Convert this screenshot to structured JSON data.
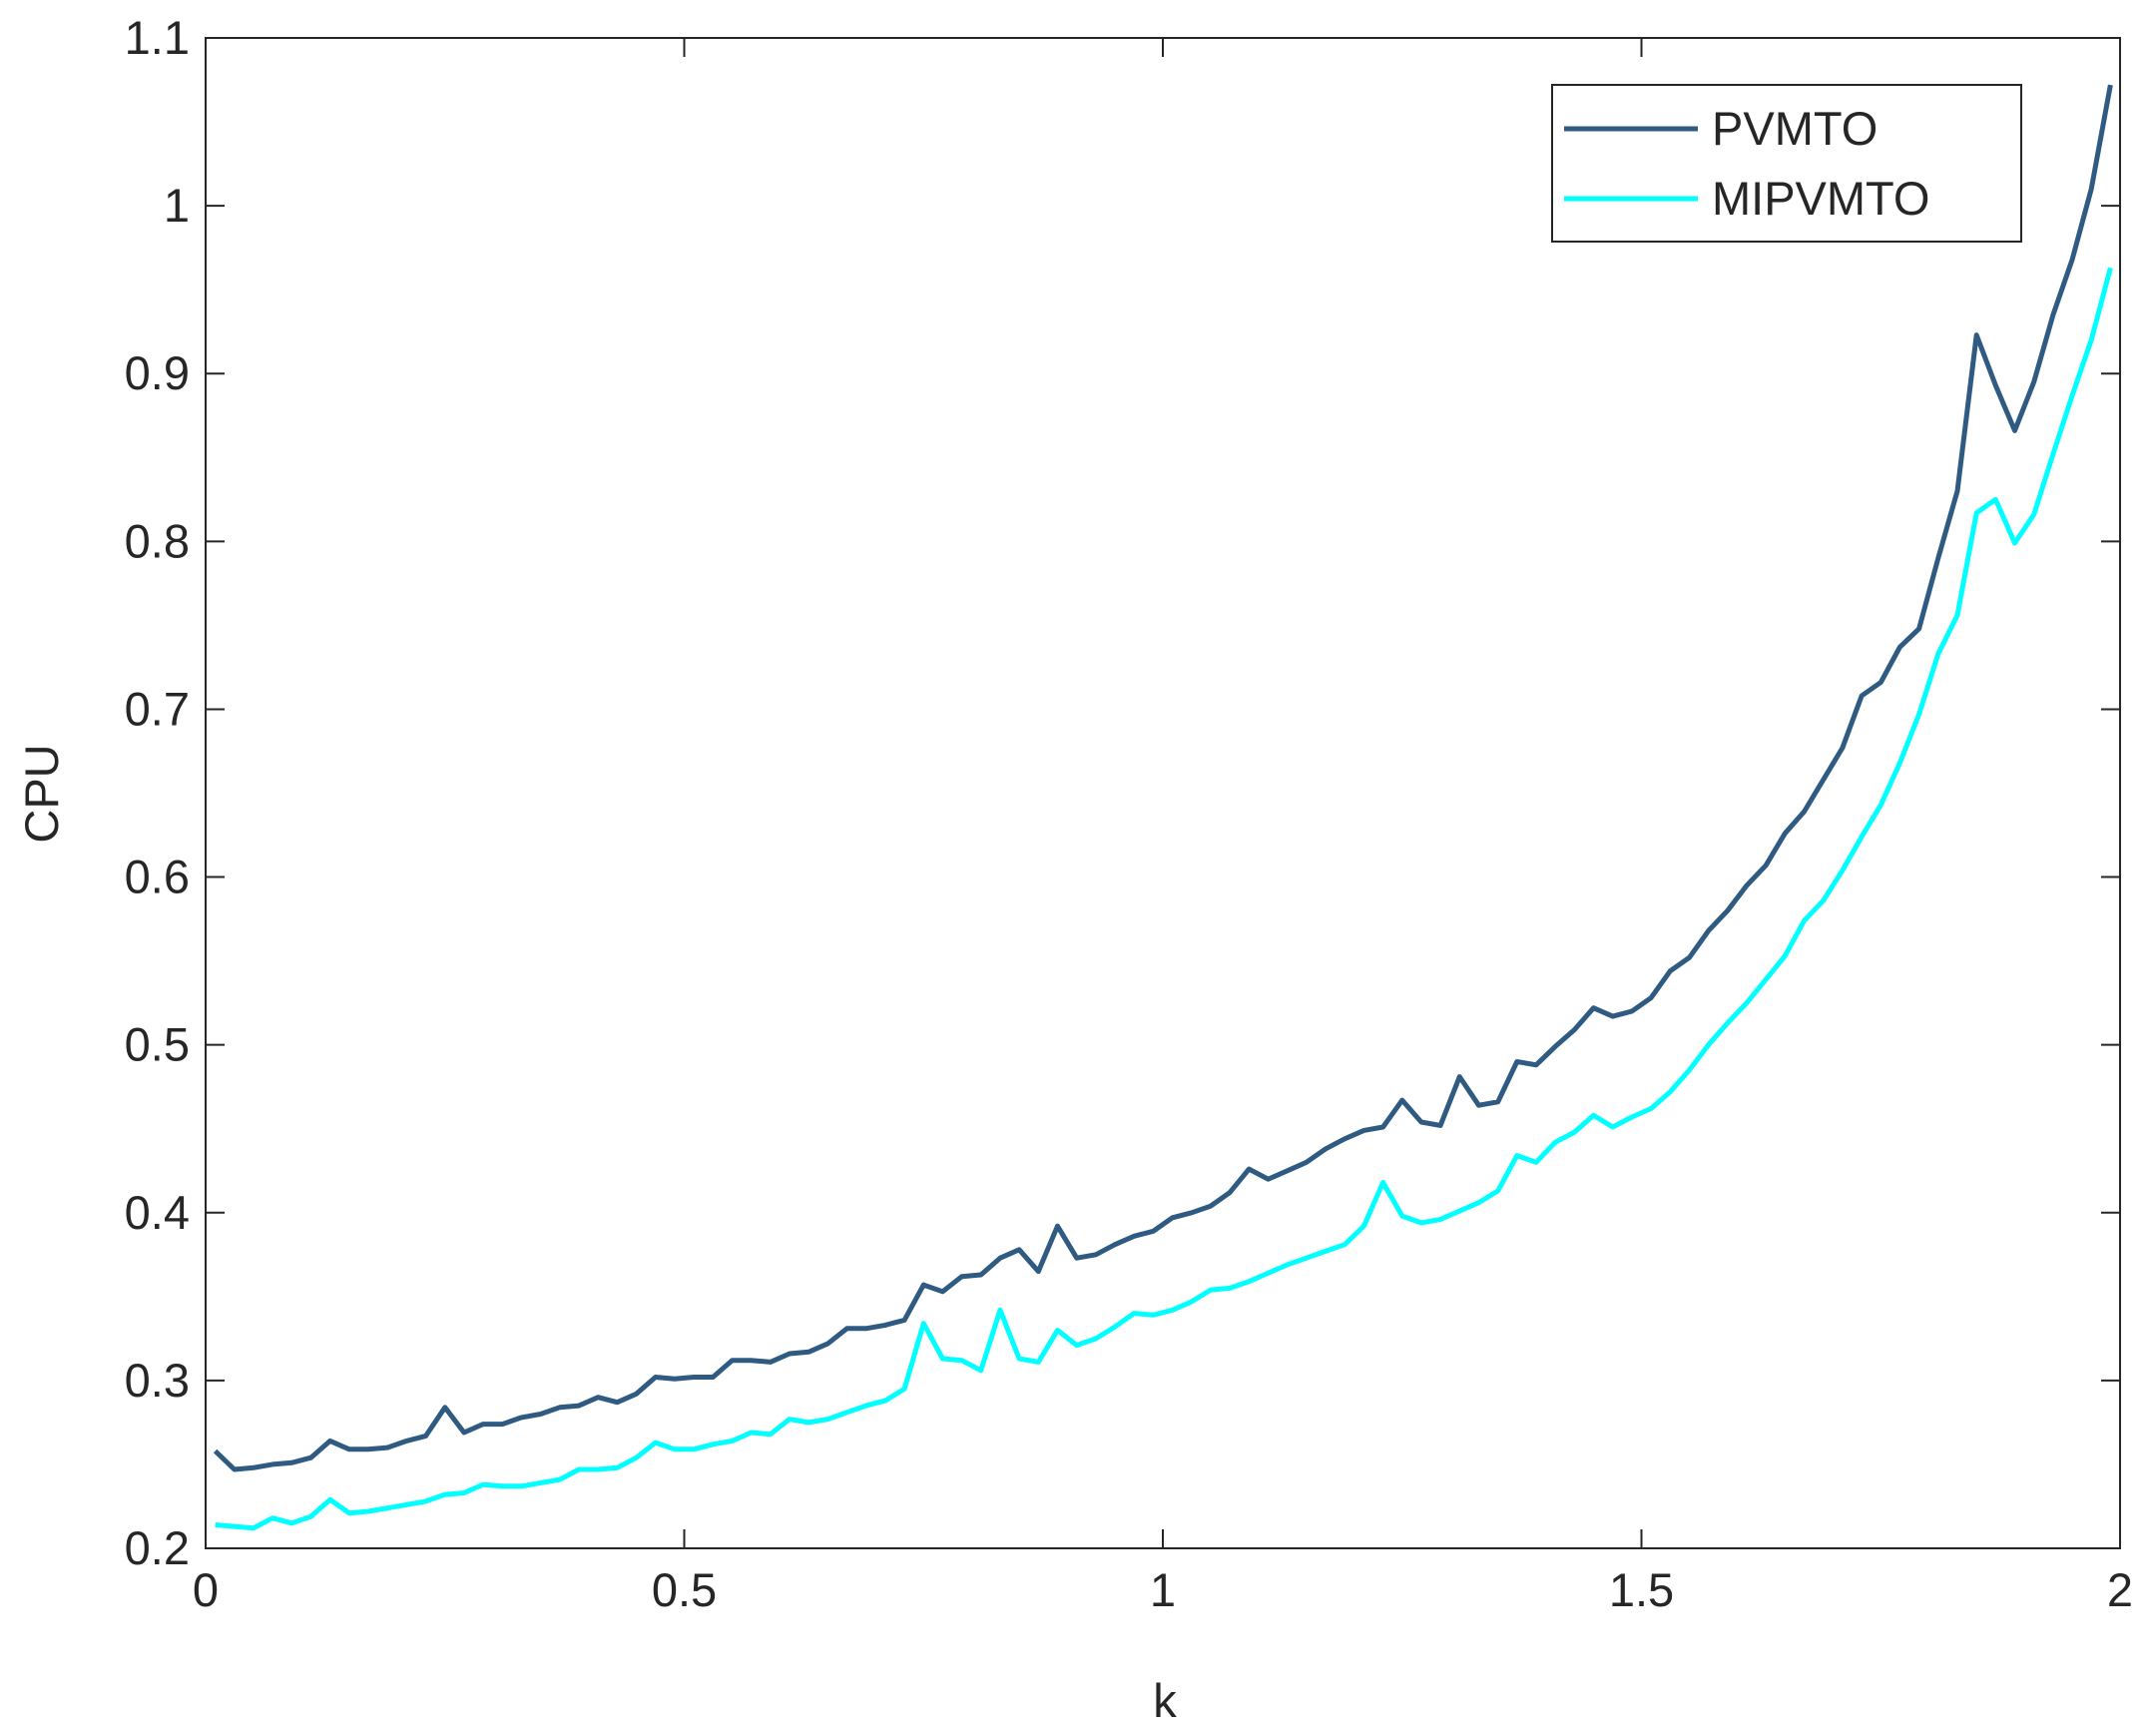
{
  "chart_data": {
    "type": "line",
    "xlabel": "k",
    "ylabel": "CPU",
    "x": [
      0.01,
      0.03,
      0.05,
      0.07,
      0.09,
      0.11,
      0.13,
      0.15,
      0.17,
      0.19,
      0.21,
      0.23,
      0.25,
      0.27,
      0.29,
      0.31,
      0.33,
      0.35,
      0.37,
      0.39,
      0.41,
      0.43,
      0.45,
      0.47,
      0.49,
      0.51,
      0.53,
      0.55,
      0.57,
      0.59,
      0.61,
      0.63,
      0.65,
      0.67,
      0.69,
      0.71,
      0.73,
      0.75,
      0.77,
      0.79,
      0.81,
      0.83,
      0.85,
      0.87,
      0.89,
      0.91,
      0.93,
      0.95,
      0.97,
      0.99,
      1.01,
      1.03,
      1.05,
      1.07,
      1.09,
      1.11,
      1.13,
      1.15,
      1.17,
      1.19,
      1.21,
      1.23,
      1.25,
      1.27,
      1.29,
      1.31,
      1.33,
      1.35,
      1.37,
      1.39,
      1.41,
      1.43,
      1.45,
      1.47,
      1.49,
      1.51,
      1.53,
      1.55,
      1.57,
      1.59,
      1.61,
      1.63,
      1.65,
      1.67,
      1.69,
      1.71,
      1.73,
      1.75,
      1.77,
      1.79,
      1.81,
      1.83,
      1.85,
      1.87,
      1.89,
      1.91,
      1.93,
      1.95,
      1.97,
      1.99
    ],
    "series": [
      {
        "name": "PVMTO",
        "color": "#2f5b82",
        "values": [
          0.258,
          0.247,
          0.248,
          0.25,
          0.251,
          0.254,
          0.264,
          0.259,
          0.259,
          0.26,
          0.264,
          0.267,
          0.284,
          0.269,
          0.274,
          0.274,
          0.278,
          0.28,
          0.284,
          0.285,
          0.29,
          0.287,
          0.292,
          0.302,
          0.301,
          0.302,
          0.302,
          0.312,
          0.312,
          0.311,
          0.316,
          0.317,
          0.322,
          0.331,
          0.331,
          0.333,
          0.336,
          0.357,
          0.353,
          0.362,
          0.363,
          0.373,
          0.378,
          0.365,
          0.392,
          0.373,
          0.375,
          0.381,
          0.386,
          0.389,
          0.397,
          0.4,
          0.404,
          0.412,
          0.426,
          0.42,
          0.425,
          0.43,
          0.438,
          0.444,
          0.449,
          0.451,
          0.467,
          0.454,
          0.452,
          0.481,
          0.464,
          0.466,
          0.49,
          0.488,
          0.499,
          0.509,
          0.522,
          0.517,
          0.52,
          0.528,
          0.544,
          0.552,
          0.568,
          0.58,
          0.595,
          0.607,
          0.626,
          0.639,
          0.658,
          0.677,
          0.708,
          0.716,
          0.737,
          0.748,
          0.79,
          0.83,
          0.923,
          0.893,
          0.866,
          0.895,
          0.935,
          0.968,
          1.01,
          1.072
        ]
      },
      {
        "name": "MIPVMTO",
        "color": "#00ffff",
        "values": [
          0.214,
          0.213,
          0.212,
          0.218,
          0.215,
          0.219,
          0.229,
          0.221,
          0.222,
          0.224,
          0.226,
          0.228,
          0.232,
          0.233,
          0.238,
          0.237,
          0.237,
          0.239,
          0.241,
          0.247,
          0.247,
          0.248,
          0.254,
          0.263,
          0.259,
          0.259,
          0.262,
          0.264,
          0.269,
          0.268,
          0.277,
          0.275,
          0.277,
          0.281,
          0.285,
          0.288,
          0.295,
          0.334,
          0.313,
          0.312,
          0.306,
          0.342,
          0.313,
          0.311,
          0.33,
          0.321,
          0.325,
          0.332,
          0.34,
          0.339,
          0.342,
          0.347,
          0.354,
          0.355,
          0.359,
          0.364,
          0.369,
          0.373,
          0.377,
          0.381,
          0.392,
          0.418,
          0.398,
          0.394,
          0.396,
          0.401,
          0.406,
          0.413,
          0.434,
          0.43,
          0.442,
          0.448,
          0.458,
          0.451,
          0.457,
          0.462,
          0.472,
          0.485,
          0.5,
          0.513,
          0.525,
          0.539,
          0.553,
          0.574,
          0.586,
          0.604,
          0.624,
          0.643,
          0.668,
          0.697,
          0.733,
          0.756,
          0.817,
          0.825,
          0.799,
          0.816,
          0.852,
          0.887,
          0.92,
          0.963
        ]
      }
    ],
    "xlim": [
      0,
      2
    ],
    "xticks": [
      0,
      0.5,
      1,
      1.5,
      2
    ],
    "ylim": [
      0.2,
      1.1
    ],
    "yticks": [
      0.2,
      0.3,
      0.4,
      0.5,
      0.6,
      0.7,
      0.8,
      0.9,
      1,
      1.1
    ],
    "legend": "upper right",
    "grid": false
  }
}
